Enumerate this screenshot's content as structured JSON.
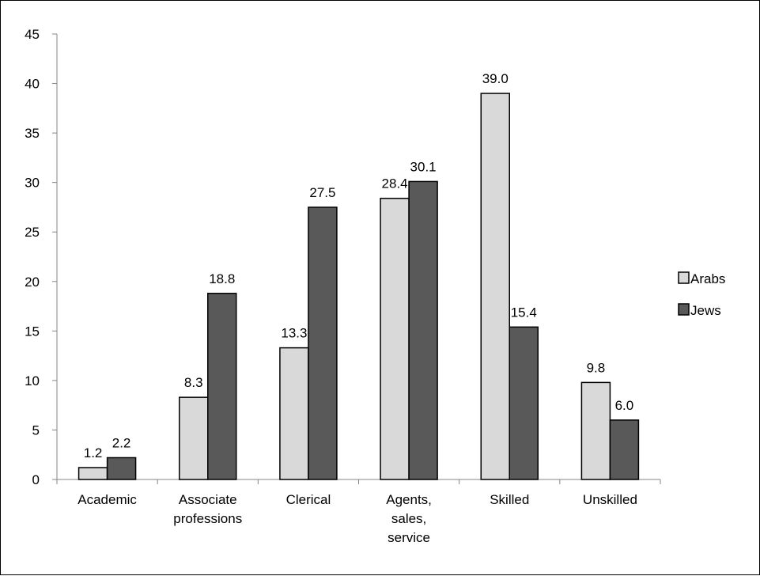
{
  "chart_data": {
    "type": "bar",
    "title": "",
    "xlabel": "",
    "ylabel": "",
    "ylim": [
      0,
      45
    ],
    "ytick_step": 5,
    "yticks": [
      "0",
      "5",
      "10",
      "15",
      "20",
      "25",
      "30",
      "35",
      "40",
      "45"
    ],
    "grid": false,
    "legend_position": "right",
    "categories": [
      [
        "Academic"
      ],
      [
        "Associate",
        "professions"
      ],
      [
        "Clerical"
      ],
      [
        "Agents,",
        "sales,",
        "service"
      ],
      [
        "Skilled"
      ],
      [
        "Unskilled"
      ]
    ],
    "series": [
      {
        "name": "Arabs",
        "values": [
          1.2,
          8.3,
          13.3,
          28.4,
          39.0,
          9.8
        ],
        "labels": [
          "1.2",
          "8.3",
          "13.3",
          "28.4",
          "39.0",
          "9.8"
        ],
        "color": "#d9d9d9"
      },
      {
        "name": "Jews",
        "values": [
          2.2,
          18.8,
          27.5,
          30.1,
          15.4,
          6.0
        ],
        "labels": [
          "2.2",
          "18.8",
          "27.5",
          "30.1",
          "15.4",
          "6.0"
        ],
        "color": "#595959"
      }
    ]
  }
}
